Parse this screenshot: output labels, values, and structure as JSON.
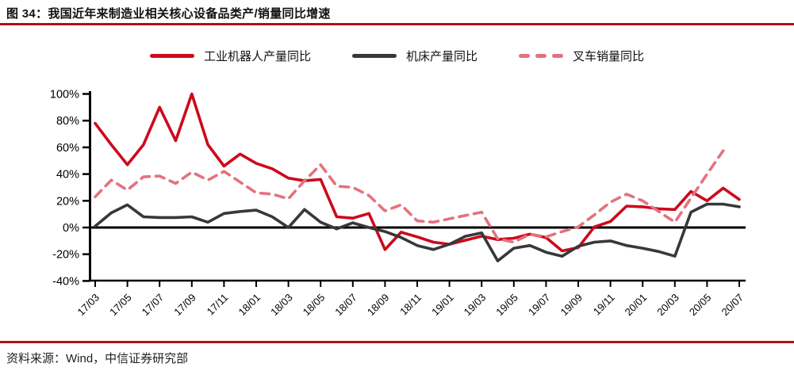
{
  "header": {
    "title": "图 34：我国近年来制造业相关核心设备品类产/销量同比增速"
  },
  "footer": {
    "source": "资料来源：Wind，中信证券研究部"
  },
  "colors": {
    "rule_dark_red": "#b01116",
    "robot_red": "#cc0a1c",
    "machine_tool_dark": "#383838",
    "forklift_pink": "#e2737e",
    "axis_black": "#000000"
  },
  "chart_data": {
    "type": "line",
    "title": "图 34：我国近年来制造业相关核心设备品类产/销量同比增速",
    "grid": false,
    "legend_position": "top",
    "ylim": [
      -40,
      100
    ],
    "ytick_step": 20,
    "ytick_labels": [
      "100%",
      "80%",
      "60%",
      "40%",
      "20%",
      "0%",
      "-20%",
      "-40%"
    ],
    "x": [
      "17/03",
      "17/04",
      "17/05",
      "17/06",
      "17/07",
      "17/08",
      "17/09",
      "17/10",
      "17/11",
      "17/12",
      "18/01",
      "18/02",
      "18/03",
      "18/04",
      "18/05",
      "18/06",
      "18/07",
      "18/08",
      "18/09",
      "18/10",
      "18/11",
      "18/12",
      "19/01",
      "19/02",
      "19/03",
      "19/04",
      "19/05",
      "19/06",
      "19/07",
      "19/08",
      "19/09",
      "19/10",
      "19/11",
      "19/12",
      "20/01",
      "20/02",
      "20/03",
      "20/04",
      "20/05",
      "20/06",
      "20/07"
    ],
    "x_tick_labels": [
      "17/03",
      "17/05",
      "17/07",
      "17/09",
      "17/11",
      "18/01",
      "18/03",
      "18/05",
      "18/07",
      "18/09",
      "18/11",
      "19/01",
      "19/03",
      "19/05",
      "19/07",
      "19/09",
      "19/11",
      "20/01",
      "20/03",
      "20/05",
      "20/07"
    ],
    "series": [
      {
        "key": "industrial-robot-output-yoy",
        "name": "工业机器人产量同比",
        "color": "#cc0a1c",
        "style": "solid",
        "values": [
          78,
          62,
          47,
          62,
          90,
          65,
          100,
          62,
          46,
          55,
          48,
          44,
          37,
          35,
          36,
          8,
          7,
          10.5,
          -16.5,
          -3.5,
          -7,
          -11,
          -12.5,
          -9.5,
          -6.5,
          -9,
          -8,
          -5,
          -7.5,
          -17.5,
          -15,
          0.5,
          4.5,
          16,
          15.5,
          14,
          13.5,
          27,
          20,
          29.5,
          21
        ]
      },
      {
        "key": "machine-tool-output-yoy",
        "name": "机床产量同比",
        "color": "#383838",
        "style": "solid",
        "values": [
          1,
          11,
          17,
          8,
          7.5,
          7.5,
          8,
          4,
          10.5,
          12,
          13,
          8,
          0,
          13.5,
          4,
          -1,
          3.5,
          0,
          -3,
          -7.5,
          -13.5,
          -16.5,
          -12.5,
          -6.5,
          -4,
          -25,
          -15.5,
          -13.5,
          -18.5,
          -21.5,
          -14,
          -11,
          -10,
          -13.5,
          -15.5,
          -18,
          -21.5,
          11.5,
          17.5,
          17.5,
          15.5
        ]
      },
      {
        "key": "forklift-sales-yoy",
        "name": "叉车销量同比",
        "color": "#e2737e",
        "style": "dashed",
        "values": [
          23,
          35.5,
          28,
          38,
          38.5,
          33,
          41.5,
          35.5,
          42,
          34,
          26,
          25,
          21.5,
          35,
          47,
          31,
          30,
          24,
          12.5,
          17,
          5,
          4,
          6.5,
          9,
          11.5,
          -8.5,
          -11,
          -5,
          -7,
          -3,
          0.5,
          9.5,
          19,
          25,
          20,
          12,
          4,
          22,
          40,
          57.5,
          null
        ]
      }
    ]
  }
}
